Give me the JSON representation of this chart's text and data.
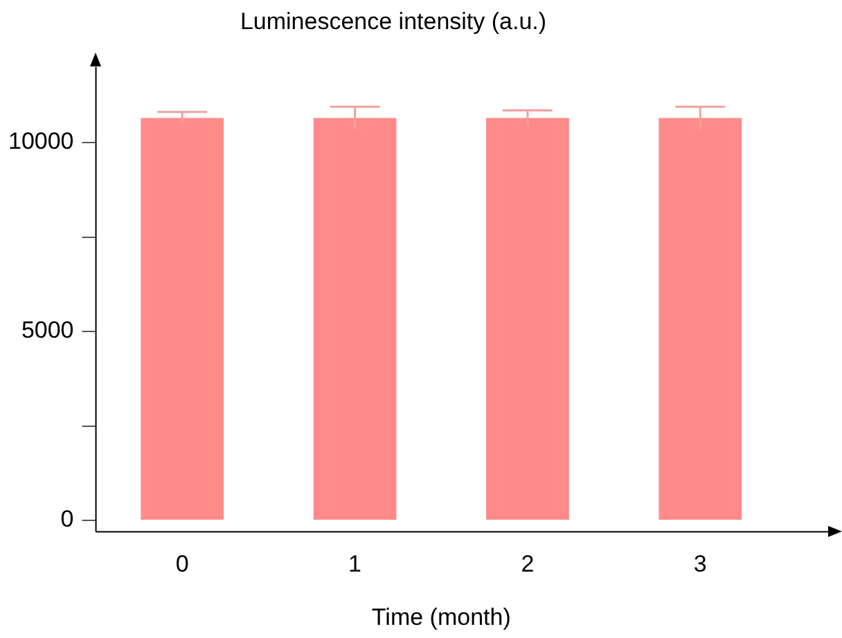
{
  "chart_data": {
    "type": "bar",
    "title": "Luminescence intensity (a.u.)",
    "xlabel": "Time (month)",
    "categories": [
      "0",
      "1",
      "2",
      "3"
    ],
    "values": [
      10650,
      10650,
      10650,
      10650
    ],
    "errors": [
      160,
      300,
      200,
      300
    ],
    "color": "#ff8a8a",
    "ylim": [
      -300,
      12000
    ],
    "yticks": [
      0,
      {
        "value": 2500,
        "label": null
      },
      5000,
      {
        "value": 7500,
        "label": null
      },
      10000
    ],
    "grid": false,
    "legend": false
  }
}
